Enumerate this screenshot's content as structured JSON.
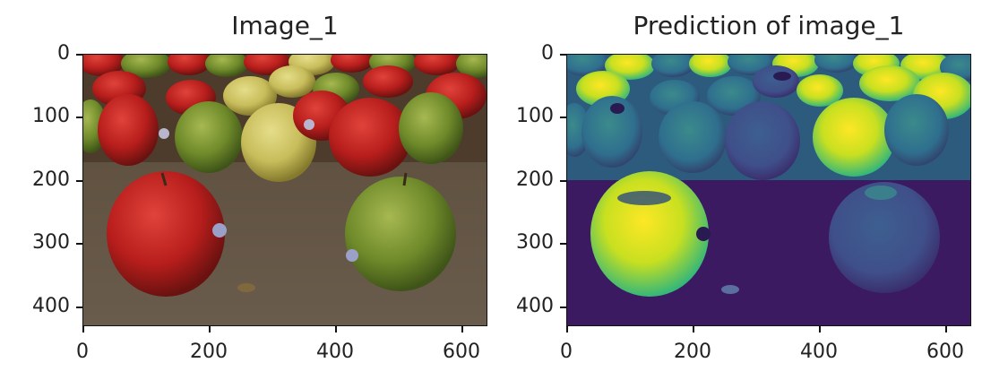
{
  "figure": {
    "panels": [
      {
        "id": "original",
        "title": "Image_1",
        "content": "photo-apples",
        "x_ticks": [
          "0",
          "200",
          "400",
          "600"
        ],
        "y_ticks": [
          "0",
          "100",
          "200",
          "300",
          "400"
        ]
      },
      {
        "id": "prediction",
        "title": "Prediction of image_1",
        "content": "prediction-heatmap",
        "colormap": "viridis",
        "x_ticks": [
          "0",
          "200",
          "400",
          "600"
        ],
        "y_ticks": [
          "0",
          "100",
          "200",
          "300",
          "400"
        ]
      }
    ]
  }
}
